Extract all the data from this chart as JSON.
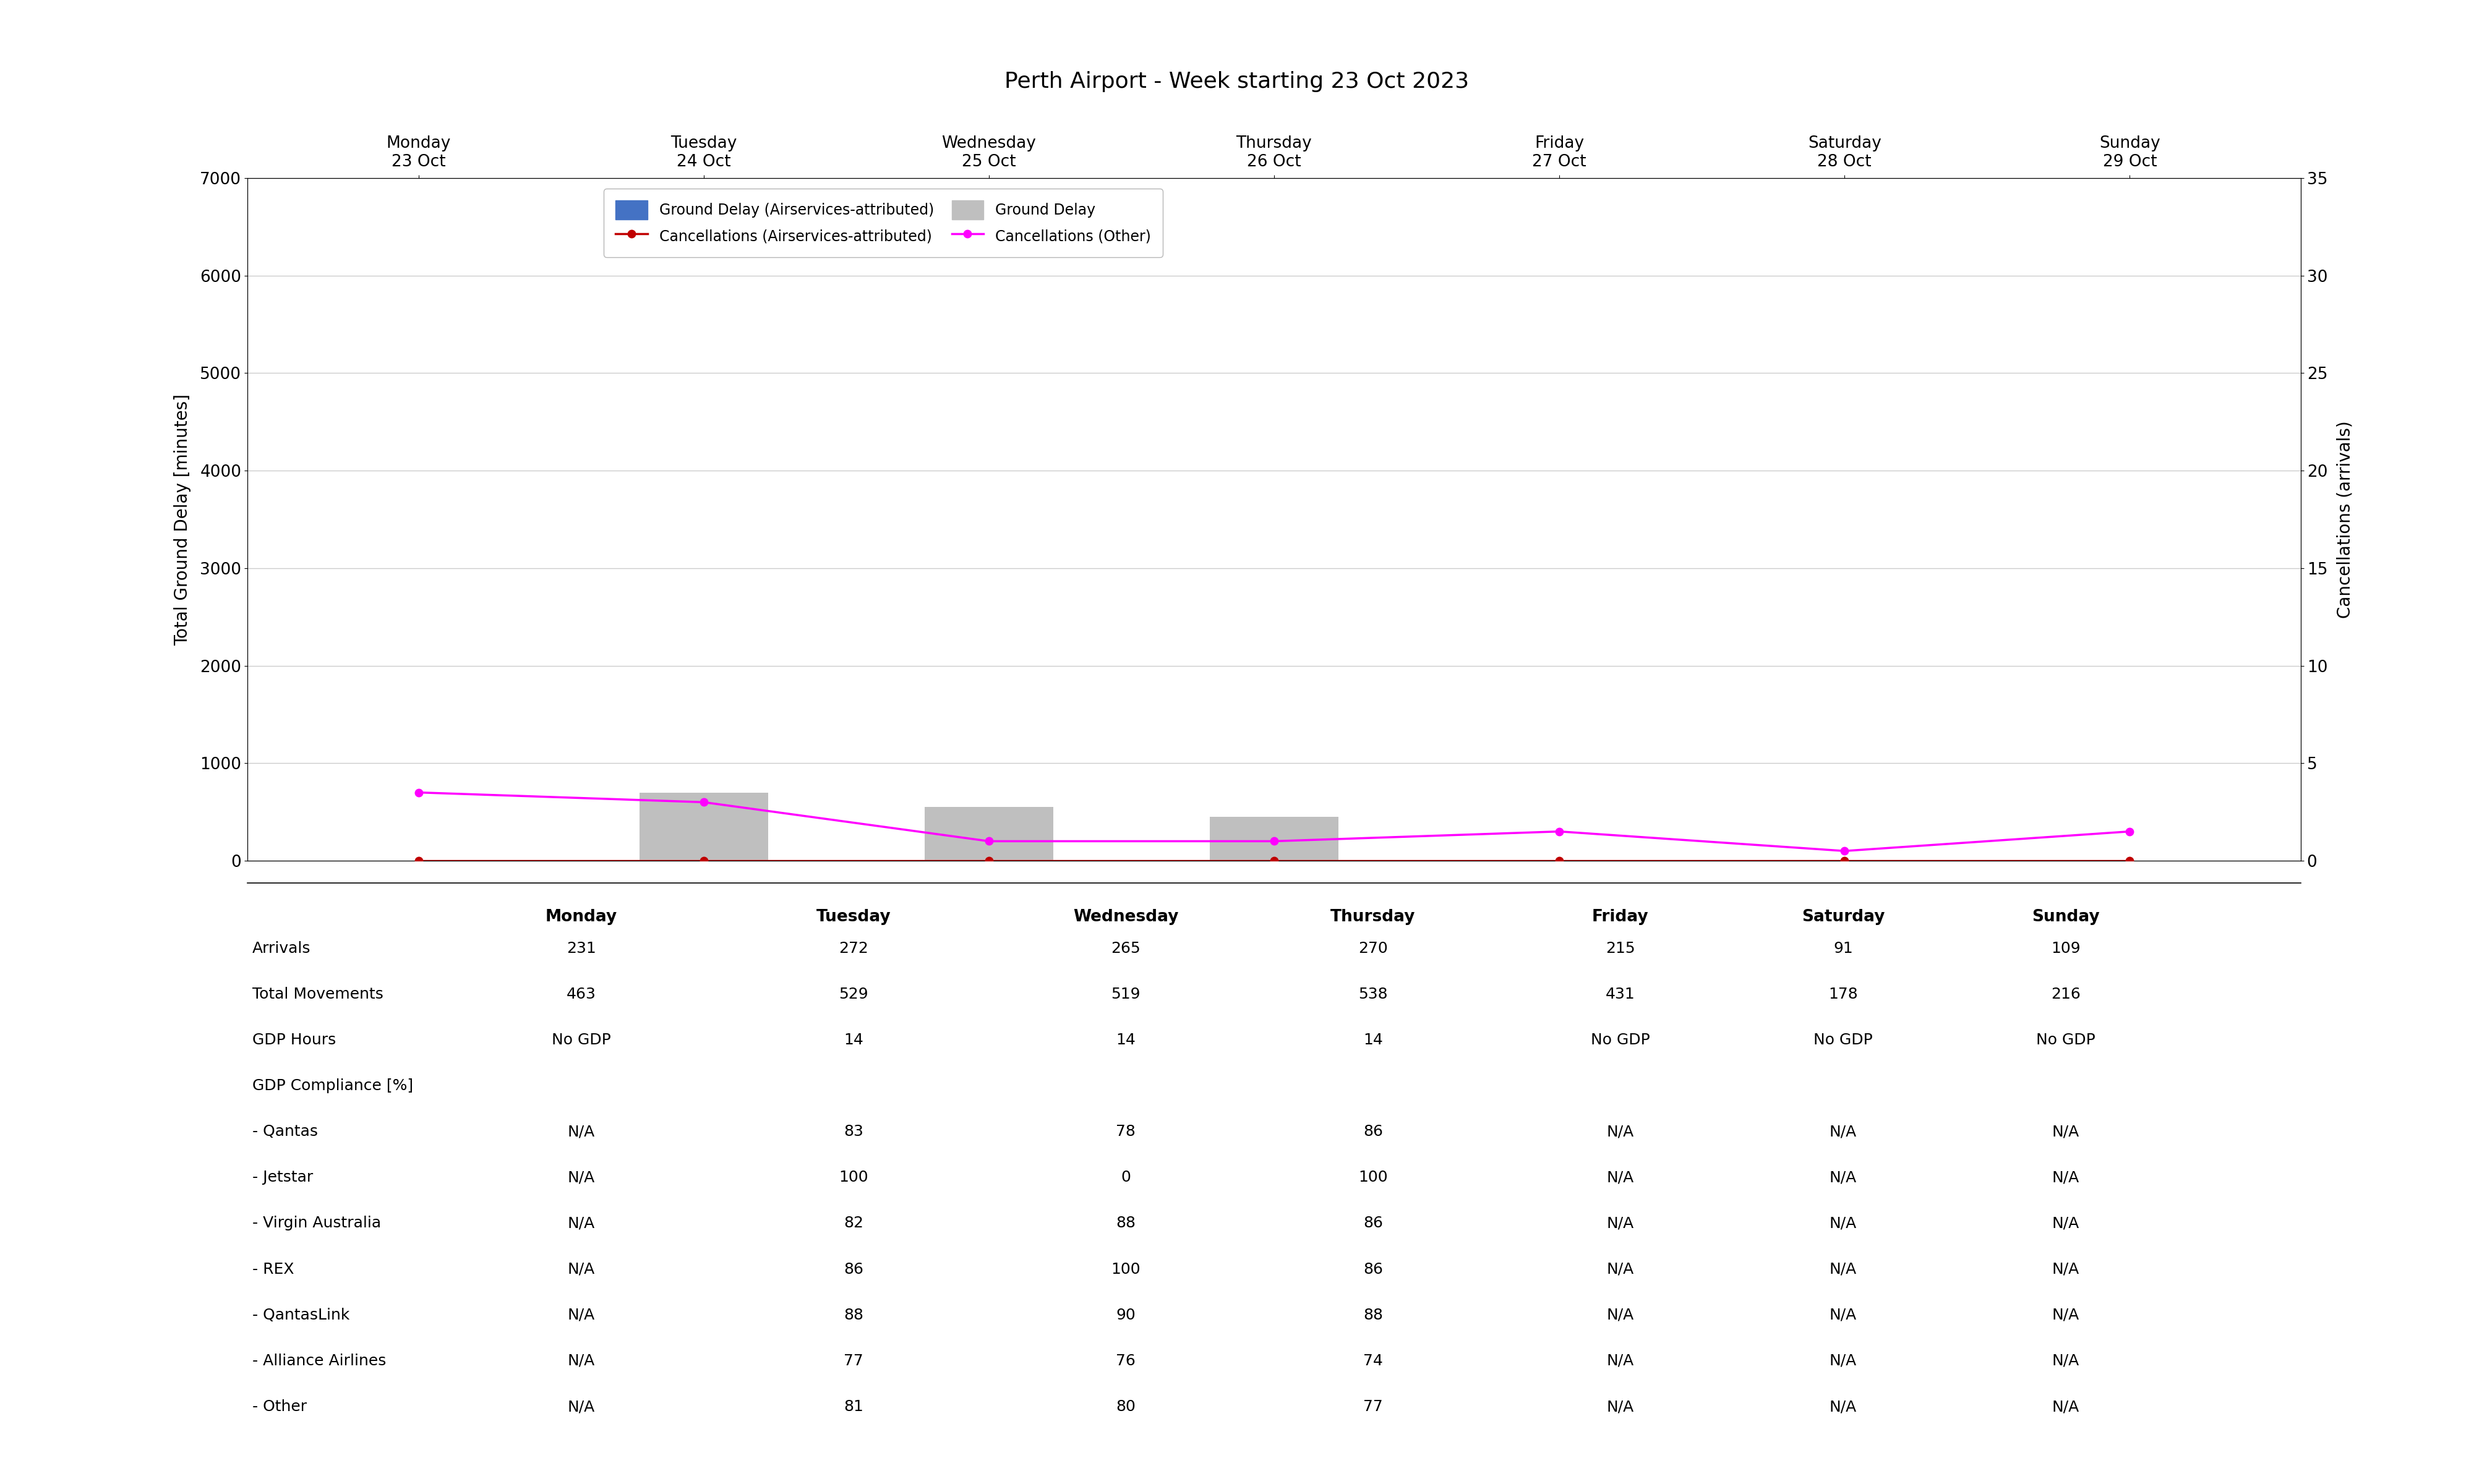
{
  "title": "Perth Airport - Week starting 23 Oct 2023",
  "days": [
    "Monday\n23 Oct",
    "Tuesday\n24 Oct",
    "Wednesday\n25 Oct",
    "Thursday\n26 Oct",
    "Friday\n27 Oct",
    "Saturday\n28 Oct",
    "Sunday\n29 Oct"
  ],
  "days_short": [
    "Monday",
    "Tuesday",
    "Wednesday",
    "Thursday",
    "Friday",
    "Saturday",
    "Sunday"
  ],
  "ground_delay_airservices": [
    0,
    0,
    0,
    0,
    0,
    0,
    0
  ],
  "ground_delay_total": [
    0,
    700,
    550,
    450,
    0,
    0,
    0
  ],
  "cancellations_airservices": [
    0,
    0,
    0,
    0,
    0,
    0,
    0
  ],
  "cancellations_other": [
    3.5,
    3.0,
    1.0,
    1.0,
    1.5,
    0.5,
    1.5
  ],
  "bar_color_airservices": "#4472C4",
  "bar_color_total": "#BFBFBF",
  "line_color_airservices": "#C00000",
  "line_color_other": "#FF00FF",
  "ylim_left": [
    0,
    7000
  ],
  "ylim_right": [
    0,
    35
  ],
  "yticks_left": [
    0,
    1000,
    2000,
    3000,
    4000,
    5000,
    6000,
    7000
  ],
  "yticks_right": [
    0,
    5,
    10,
    15,
    20,
    25,
    30,
    35
  ],
  "ylabel_left": "Total Ground Delay [minutes]",
  "ylabel_right": "Cancellations (arrivals)",
  "table_rows": [
    [
      "Arrivals",
      "231",
      "272",
      "265",
      "270",
      "215",
      "91",
      "109"
    ],
    [
      "Total Movements",
      "463",
      "529",
      "519",
      "538",
      "431",
      "178",
      "216"
    ],
    [
      "GDP Hours",
      "No GDP",
      "14",
      "14",
      "14",
      "No GDP",
      "No GDP",
      "No GDP"
    ],
    [
      "GDP Compliance [%]",
      "",
      "",
      "",
      "",
      "",
      "",
      ""
    ],
    [
      "- Qantas",
      "N/A",
      "83",
      "78",
      "86",
      "N/A",
      "N/A",
      "N/A"
    ],
    [
      "- Jetstar",
      "N/A",
      "100",
      "0",
      "100",
      "N/A",
      "N/A",
      "N/A"
    ],
    [
      "- Virgin Australia",
      "N/A",
      "82",
      "88",
      "86",
      "N/A",
      "N/A",
      "N/A"
    ],
    [
      "- REX",
      "N/A",
      "86",
      "100",
      "86",
      "N/A",
      "N/A",
      "N/A"
    ],
    [
      "- QantasLink",
      "N/A",
      "88",
      "90",
      "88",
      "N/A",
      "N/A",
      "N/A"
    ],
    [
      "- Alliance Airlines",
      "N/A",
      "77",
      "76",
      "74",
      "N/A",
      "N/A",
      "N/A"
    ],
    [
      "- Other",
      "N/A",
      "81",
      "80",
      "77",
      "N/A",
      "N/A",
      "N/A"
    ]
  ],
  "legend_labels": [
    "Ground Delay (Airservices-attributed)",
    "Ground Delay",
    "Cancellations (Airservices-attributed)",
    "Cancellations (Other)"
  ],
  "title_fontsize": 26,
  "axis_label_fontsize": 20,
  "tick_fontsize": 19,
  "legend_fontsize": 17,
  "table_header_fontsize": 19,
  "table_data_fontsize": 18
}
